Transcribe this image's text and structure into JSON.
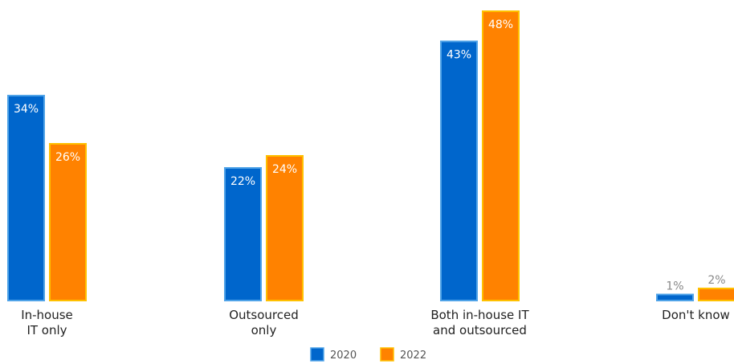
{
  "chart_data": {
    "type": "bar",
    "categories": [
      [
        "In-house",
        "IT only"
      ],
      [
        "Outsourced",
        "only"
      ],
      [
        "Both in-house IT",
        "and outsourced"
      ],
      [
        "Don't know"
      ]
    ],
    "series": [
      {
        "name": "2020",
        "values": [
          34,
          22,
          43,
          1
        ],
        "labels": [
          "34%",
          "22%",
          "43%",
          "1%"
        ],
        "color": "#0066CC",
        "border": "#4FA3E8"
      },
      {
        "name": "2022",
        "values": [
          26,
          24,
          48,
          2
        ],
        "labels": [
          "26%",
          "24%",
          "48%",
          "2%"
        ],
        "color": "#FF8200",
        "border": "#FFC000"
      }
    ],
    "ylim": [
      0,
      50
    ],
    "value_label_color_inside": "#ffffff",
    "value_label_color_outside": "#888888",
    "legend_position": "bottom-center"
  }
}
